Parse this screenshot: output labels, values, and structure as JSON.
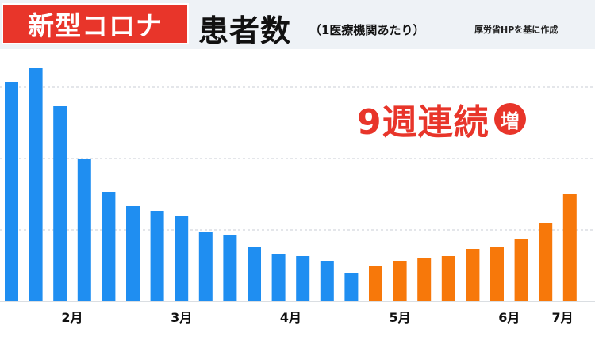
{
  "header": {
    "tag": "新型コロナ",
    "title": "患者数",
    "subtitle": "（1医療機関あたり）",
    "source": "厚労省HPを基に作成"
  },
  "callout": {
    "text": "9週連続",
    "badge": "増"
  },
  "colors": {
    "blue": "#1f8ef1",
    "orange": "#f7780a",
    "red": "#e8352a"
  },
  "chart_data": {
    "type": "bar",
    "title": "",
    "xlabel": "",
    "ylabel": "",
    "ylim": [
      0,
      100
    ],
    "grid": true,
    "month_labels": [
      {
        "label": "2月",
        "at_bar": 2.5
      },
      {
        "label": "3月",
        "at_bar": 7.0
      },
      {
        "label": "4月",
        "at_bar": 11.5
      },
      {
        "label": "5月",
        "at_bar": 16.0
      },
      {
        "label": "6月",
        "at_bar": 20.5
      },
      {
        "label": "7月",
        "at_bar": 22.7
      }
    ],
    "series": [
      {
        "color": "blue",
        "values": [
          92,
          98,
          82,
          60,
          46,
          40,
          38,
          36,
          29,
          28,
          23,
          20,
          19,
          17,
          12
        ]
      },
      {
        "color": "orange",
        "values": [
          15,
          17,
          18,
          19,
          22,
          23,
          26,
          33,
          45
        ]
      }
    ]
  }
}
